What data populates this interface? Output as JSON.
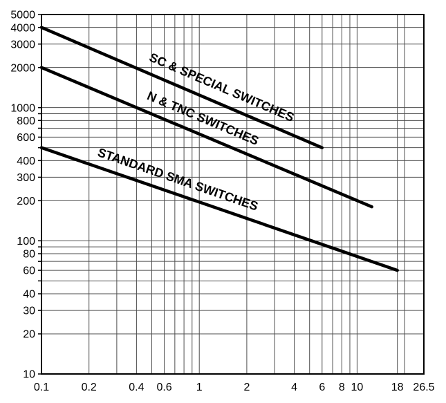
{
  "chart_data": {
    "type": "line",
    "title": "",
    "xlabel": "",
    "ylabel": "",
    "xscale": "log",
    "yscale": "log",
    "xlim": [
      0.1,
      26.5
    ],
    "ylim": [
      10,
      5000
    ],
    "grid": true,
    "legend": "inline-rotated-labels",
    "x_tick_labels": [
      0.1,
      0.2,
      0.4,
      0.6,
      1,
      2,
      4,
      6,
      8,
      10,
      18,
      26.5
    ],
    "x_gridlines": [
      0.1,
      0.2,
      0.3,
      0.4,
      0.5,
      0.6,
      0.7,
      0.8,
      0.9,
      1,
      2,
      3,
      4,
      5,
      6,
      7,
      8,
      9,
      10,
      18,
      20,
      26.5
    ],
    "y_tick_labels": [
      5000,
      4000,
      3000,
      2000,
      1000,
      800,
      600,
      400,
      300,
      200,
      100,
      80,
      60,
      40,
      30,
      20,
      10
    ],
    "y_gridlines": [
      10,
      20,
      30,
      40,
      50,
      60,
      70,
      80,
      90,
      100,
      200,
      300,
      400,
      500,
      600,
      700,
      800,
      900,
      1000,
      2000,
      3000,
      4000,
      5000
    ],
    "series": [
      {
        "name": "SC & SPECIAL SWITCHES",
        "points": [
          [
            0.1,
            4000
          ],
          [
            6,
            500
          ]
        ]
      },
      {
        "name": "N & TNC SWITCHES",
        "points": [
          [
            0.1,
            2000
          ],
          [
            12.4,
            180
          ]
        ]
      },
      {
        "name": "STANDARD SMA SWITCHES",
        "points": [
          [
            0.1,
            500
          ],
          [
            18,
            60
          ]
        ]
      }
    ],
    "colors": {
      "background": "#ffffff",
      "grid": "#4d4d4d",
      "border": "#000000",
      "line": "#000000",
      "text": "#000000"
    }
  }
}
